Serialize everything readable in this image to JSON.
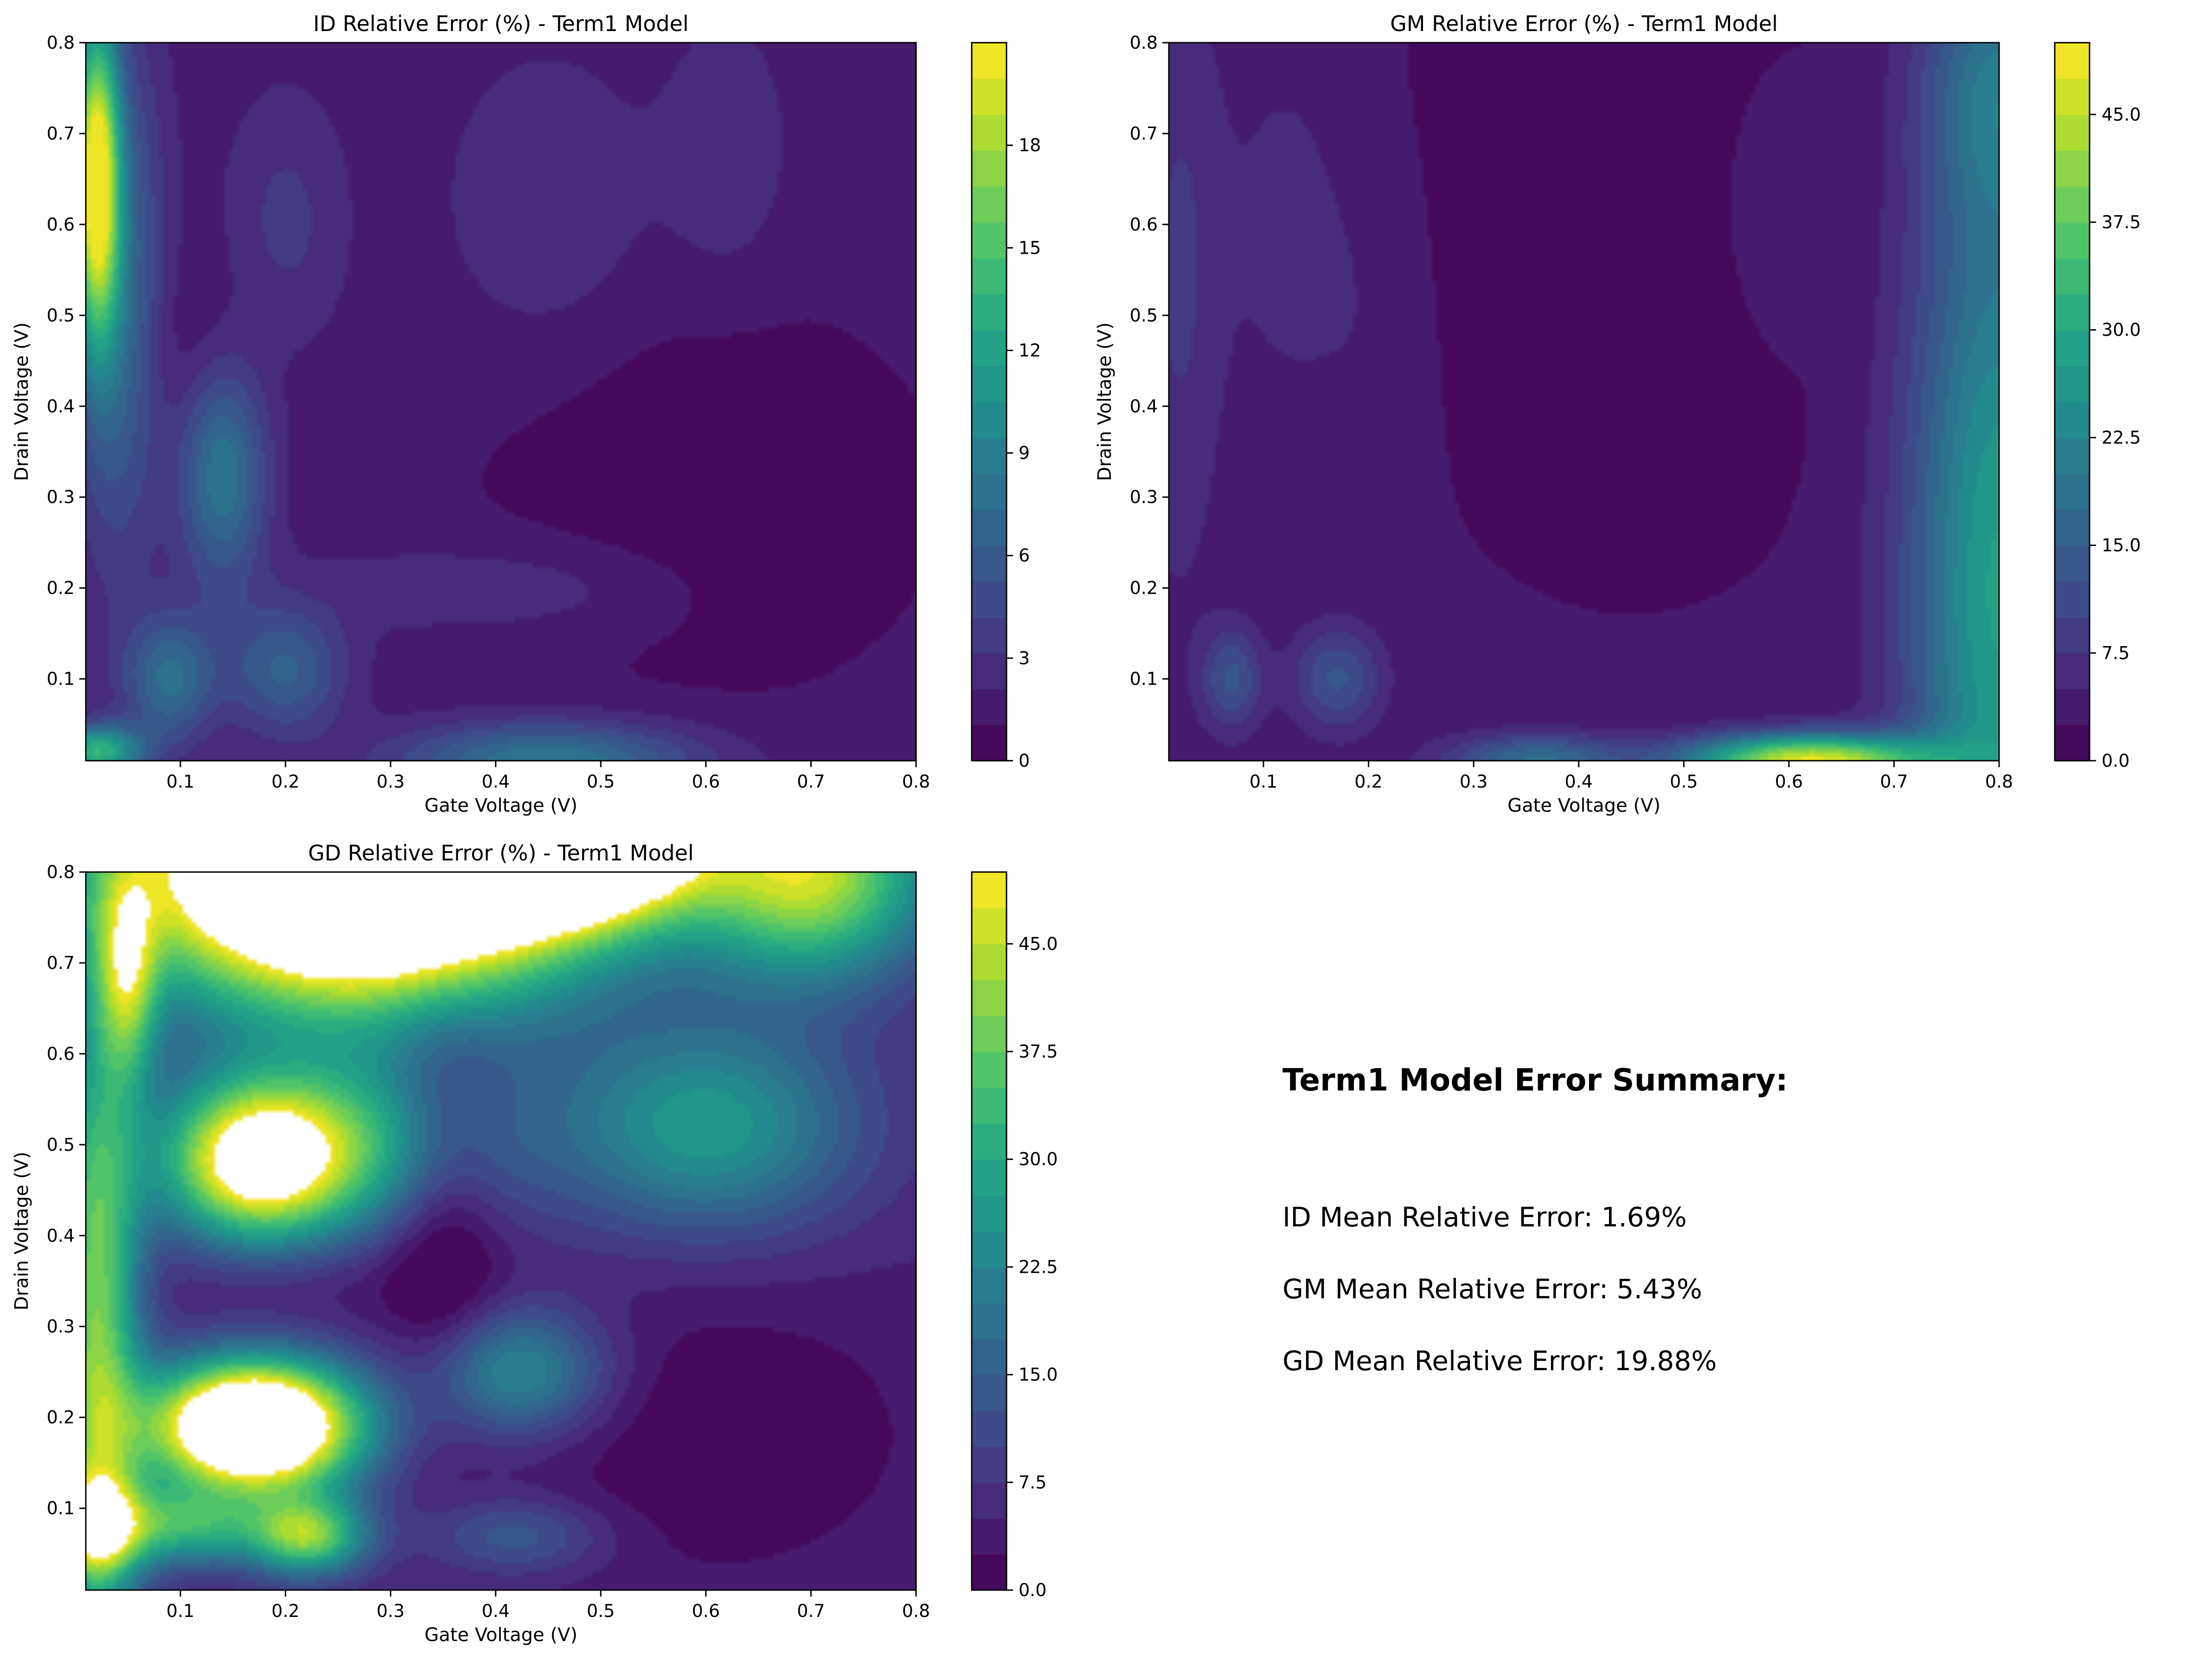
{
  "palette": [
    "#440154",
    "#482475",
    "#414487",
    "#355f8d",
    "#2a788e",
    "#21918c",
    "#22a884",
    "#44bf70",
    "#7ad151",
    "#bddf26",
    "#fde725"
  ],
  "chart_data": [
    {
      "type": "heatmap",
      "title": "ID Relative Error (%) - Term1 Model",
      "xlabel": "Gate Voltage (V)",
      "ylabel": "Drain Voltage (V)",
      "xlim": [
        0.01,
        0.8
      ],
      "ylim": [
        0.01,
        0.8
      ],
      "x_ticks": [
        0.1,
        0.2,
        0.3,
        0.4,
        0.5,
        0.6,
        0.7,
        0.8
      ],
      "x_tick_labels": [
        "0.1",
        "0.2",
        "0.3",
        "0.4",
        "0.5",
        "0.6",
        "0.7",
        "0.8"
      ],
      "y_ticks": [
        0.1,
        0.2,
        0.3,
        0.4,
        0.5,
        0.6,
        0.7,
        0.8
      ],
      "y_tick_labels": [
        "0.1",
        "0.2",
        "0.3",
        "0.4",
        "0.5",
        "0.6",
        "0.7",
        "0.8"
      ],
      "colorbar_range": [
        0,
        21
      ],
      "colorbar_ticks": [
        0,
        3,
        6,
        9,
        12,
        15,
        18
      ],
      "colorbar_tick_labels": [
        "0",
        "3",
        "6",
        "9",
        "12",
        "15",
        "18"
      ],
      "colormap": "viridis",
      "base_value": 1.5,
      "features": [
        {
          "x": 0.02,
          "y": 0.65,
          "sx": 0.015,
          "sy": 0.12,
          "a": 19
        },
        {
          "x": 0.04,
          "y": 0.52,
          "sx": 0.03,
          "sy": 0.2,
          "a": 6
        },
        {
          "x": 0.14,
          "y": 0.33,
          "sx": 0.03,
          "sy": 0.09,
          "a": 7
        },
        {
          "x": 0.09,
          "y": 0.1,
          "sx": 0.03,
          "sy": 0.05,
          "a": 6
        },
        {
          "x": 0.2,
          "y": 0.11,
          "sx": 0.04,
          "sy": 0.05,
          "a": 5
        },
        {
          "x": 0.02,
          "y": 0.02,
          "sx": 0.03,
          "sy": 0.02,
          "a": 12
        },
        {
          "x": 0.45,
          "y": 0.01,
          "sx": 0.1,
          "sy": 0.03,
          "a": 7
        },
        {
          "x": 0.2,
          "y": 0.6,
          "sx": 0.04,
          "sy": 0.1,
          "a": 2
        },
        {
          "x": 0.45,
          "y": 0.62,
          "sx": 0.07,
          "sy": 0.12,
          "a": 1.5
        },
        {
          "x": 0.62,
          "y": 0.68,
          "sx": 0.04,
          "sy": 0.1,
          "a": 1.5
        },
        {
          "x": 0.35,
          "y": 0.2,
          "sx": 0.1,
          "sy": 0.04,
          "a": 1.2
        },
        {
          "x": 0.5,
          "y": 0.2,
          "sx": 0.08,
          "sy": 0.04,
          "a": 1.0
        },
        {
          "x": 0.12,
          "y": 0.45,
          "sx": 0.05,
          "sy": 0.08,
          "a": -1.3
        },
        {
          "x": 0.6,
          "y": 0.3,
          "sx": 0.15,
          "sy": 0.15,
          "a": -1.4
        }
      ]
    },
    {
      "type": "heatmap",
      "title": "GM Relative Error (%) - Term1 Model",
      "xlabel": "Gate Voltage (V)",
      "ylabel": "Drain Voltage (V)",
      "xlim": [
        0.01,
        0.8
      ],
      "ylim": [
        0.01,
        0.8
      ],
      "x_ticks": [
        0.1,
        0.2,
        0.3,
        0.4,
        0.5,
        0.6,
        0.7,
        0.8
      ],
      "x_tick_labels": [
        "0.1",
        "0.2",
        "0.3",
        "0.4",
        "0.5",
        "0.6",
        "0.7",
        "0.8"
      ],
      "y_ticks": [
        0.1,
        0.2,
        0.3,
        0.4,
        0.5,
        0.6,
        0.7,
        0.8
      ],
      "y_tick_labels": [
        "0.1",
        "0.2",
        "0.3",
        "0.4",
        "0.5",
        "0.6",
        "0.7",
        "0.8"
      ],
      "colorbar_range": [
        0,
        50
      ],
      "colorbar_ticks": [
        0,
        7.5,
        15,
        22.5,
        30,
        37.5,
        45
      ],
      "colorbar_tick_labels": [
        "0.0",
        "7.5",
        "15.0",
        "22.5",
        "30.0",
        "37.5",
        "45.0"
      ],
      "colormap": "viridis",
      "base_value": 3,
      "features": [
        {
          "x": 0.8,
          "y": 0.2,
          "sx": 0.06,
          "sy": 0.35,
          "a": 25
        },
        {
          "x": 0.8,
          "y": 0.75,
          "sx": 0.05,
          "sy": 0.1,
          "a": 12
        },
        {
          "x": 0.62,
          "y": 0.01,
          "sx": 0.08,
          "sy": 0.02,
          "a": 45
        },
        {
          "x": 0.36,
          "y": 0.01,
          "sx": 0.06,
          "sy": 0.02,
          "a": 15
        },
        {
          "x": 0.07,
          "y": 0.1,
          "sx": 0.02,
          "sy": 0.04,
          "a": 10
        },
        {
          "x": 0.17,
          "y": 0.1,
          "sx": 0.03,
          "sy": 0.04,
          "a": 10
        },
        {
          "x": 0.02,
          "y": 0.55,
          "sx": 0.03,
          "sy": 0.25,
          "a": 5
        },
        {
          "x": 0.59,
          "y": 0.62,
          "sx": 0.04,
          "sy": 0.1,
          "a": 3
        },
        {
          "x": 0.12,
          "y": 0.6,
          "sx": 0.04,
          "sy": 0.15,
          "a": 3
        },
        {
          "x": 0.2,
          "y": 0.5,
          "sx": 0.04,
          "sy": 0.15,
          "a": 2
        },
        {
          "x": 0.45,
          "y": 0.62,
          "sx": 0.15,
          "sy": 0.25,
          "a": -2.5
        }
      ]
    },
    {
      "type": "heatmap",
      "title": "GD Relative Error (%) - Term1 Model",
      "xlabel": "Gate Voltage (V)",
      "ylabel": "Drain Voltage (V)",
      "xlim": [
        0.01,
        0.8
      ],
      "ylim": [
        0.01,
        0.8
      ],
      "x_ticks": [
        0.1,
        0.2,
        0.3,
        0.4,
        0.5,
        0.6,
        0.7,
        0.8
      ],
      "x_tick_labels": [
        "0.1",
        "0.2",
        "0.3",
        "0.4",
        "0.5",
        "0.6",
        "0.7",
        "0.8"
      ],
      "y_ticks": [
        0.1,
        0.2,
        0.3,
        0.4,
        0.5,
        0.6,
        0.7,
        0.8
      ],
      "y_tick_labels": [
        "0.1",
        "0.2",
        "0.3",
        "0.4",
        "0.5",
        "0.6",
        "0.7",
        "0.8"
      ],
      "colorbar_range": [
        0,
        50
      ],
      "colorbar_ticks": [
        0,
        7.5,
        15,
        22.5,
        30,
        37.5,
        45
      ],
      "colorbar_tick_labels": [
        "0.0",
        "7.5",
        "15.0",
        "22.5",
        "30.0",
        "37.5",
        "45.0"
      ],
      "colormap": "viridis",
      "above_max": "white",
      "base_value": 5,
      "features": [
        {
          "x": 0.27,
          "y": 0.8,
          "sx": 0.15,
          "sy": 0.1,
          "a": 90
        },
        {
          "x": 0.48,
          "y": 0.84,
          "sx": 0.08,
          "sy": 0.06,
          "a": 70
        },
        {
          "x": 0.7,
          "y": 0.8,
          "sx": 0.08,
          "sy": 0.08,
          "a": 40
        },
        {
          "x": 0.17,
          "y": 0.19,
          "sx": 0.07,
          "sy": 0.05,
          "a": 75
        },
        {
          "x": 0.17,
          "y": 0.48,
          "sx": 0.06,
          "sy": 0.06,
          "a": 42
        },
        {
          "x": 0.26,
          "y": 0.5,
          "sx": 0.1,
          "sy": 0.07,
          "a": 25
        },
        {
          "x": 0.6,
          "y": 0.52,
          "sx": 0.1,
          "sy": 0.08,
          "a": 22
        },
        {
          "x": 0.02,
          "y": 0.3,
          "sx": 0.03,
          "sy": 0.25,
          "a": 35
        },
        {
          "x": 0.02,
          "y": 0.08,
          "sx": 0.03,
          "sy": 0.04,
          "a": 30
        },
        {
          "x": 0.1,
          "y": 0.08,
          "sx": 0.05,
          "sy": 0.03,
          "a": 25
        },
        {
          "x": 0.22,
          "y": 0.07,
          "sx": 0.04,
          "sy": 0.03,
          "a": 35
        },
        {
          "x": 0.42,
          "y": 0.25,
          "sx": 0.06,
          "sy": 0.05,
          "a": 20
        },
        {
          "x": 0.05,
          "y": 0.68,
          "sx": 0.02,
          "sy": 0.08,
          "a": 25
        },
        {
          "x": 0.42,
          "y": 0.07,
          "sx": 0.06,
          "sy": 0.03,
          "a": 10
        },
        {
          "x": 0.35,
          "y": 0.45,
          "sx": 0.04,
          "sy": 0.15,
          "a": -10
        },
        {
          "x": 0.6,
          "y": 0.18,
          "sx": 0.15,
          "sy": 0.12,
          "a": -5
        },
        {
          "x": 0.22,
          "y": 0.35,
          "sx": 0.1,
          "sy": 0.04,
          "a": -3
        }
      ]
    }
  ],
  "summary": {
    "title": "Term1 Model Error Summary:",
    "lines": [
      "ID Mean Relative Error: 1.69%",
      "GM Mean Relative Error: 5.43%",
      "GD Mean Relative Error: 19.88%"
    ]
  }
}
